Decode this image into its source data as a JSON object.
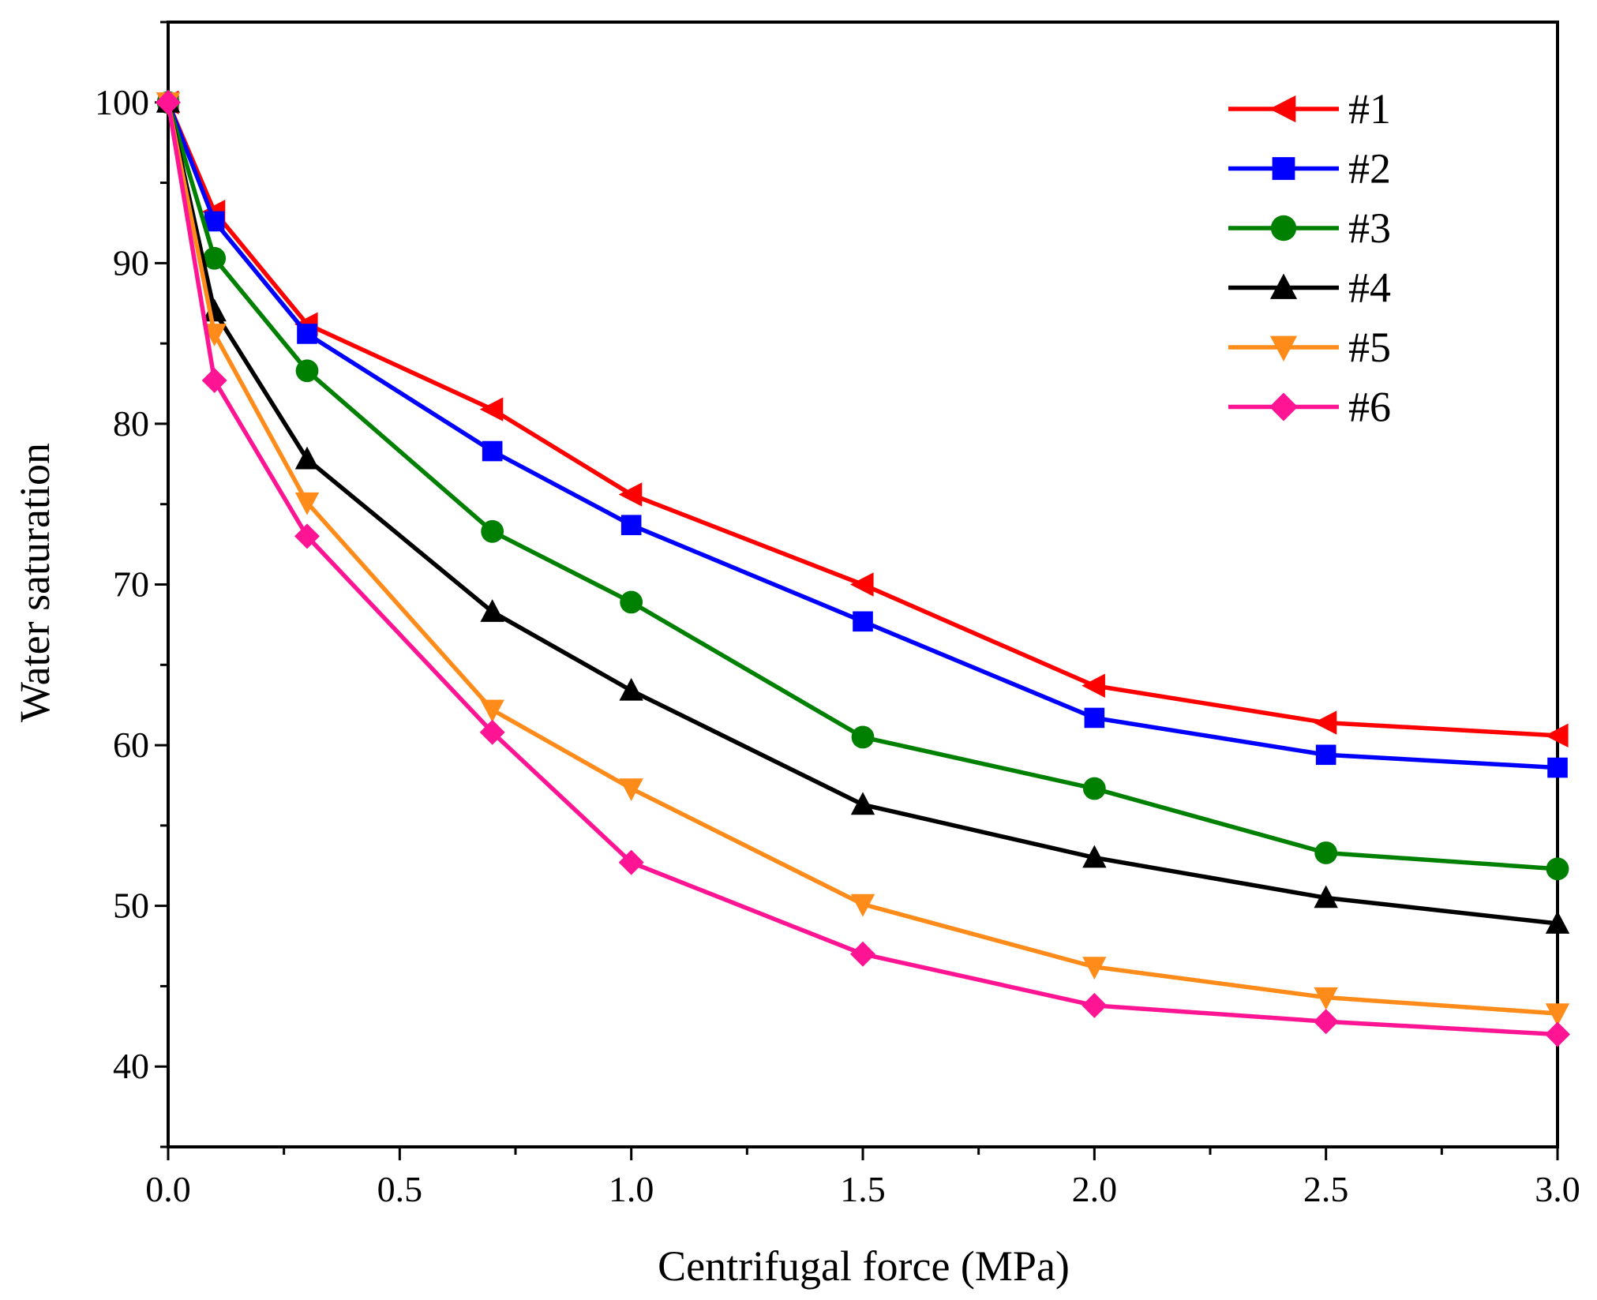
{
  "chart_data": {
    "type": "line",
    "title": "",
    "xlabel": "Centrifugal force  (MPa)",
    "ylabel": "Water saturation",
    "xlim": [
      0,
      3.0
    ],
    "ylim": [
      35,
      105
    ],
    "x_ticks": [
      0.0,
      0.5,
      1.0,
      1.5,
      2.0,
      2.5,
      3.0
    ],
    "x_tick_labels": [
      "0.0",
      "0.5",
      "1.0",
      "1.5",
      "2.0",
      "2.5",
      "3.0"
    ],
    "y_ticks": [
      40,
      50,
      60,
      70,
      80,
      90,
      100
    ],
    "y_tick_labels": [
      "40",
      "50",
      "60",
      "70",
      "80",
      "90",
      "100"
    ],
    "grid": false,
    "legend_position": "top-right",
    "x": [
      0,
      0.1,
      0.3,
      0.7,
      1.0,
      1.5,
      2.0,
      2.5,
      3.0
    ],
    "series": [
      {
        "name": "#1",
        "color": "#ff0000",
        "marker": "triangle-left",
        "values": [
          100,
          93.2,
          86.2,
          80.9,
          75.6,
          70.0,
          63.7,
          61.4,
          60.6
        ]
      },
      {
        "name": "#2",
        "color": "#0000ff",
        "marker": "square",
        "values": [
          100,
          92.6,
          85.6,
          78.3,
          73.7,
          67.7,
          61.7,
          59.4,
          58.6
        ]
      },
      {
        "name": "#3",
        "color": "#008000",
        "marker": "circle",
        "values": [
          100,
          90.3,
          83.3,
          73.3,
          68.9,
          60.5,
          57.3,
          53.3,
          52.3
        ]
      },
      {
        "name": "#4",
        "color": "#000000",
        "marker": "triangle-up",
        "values": [
          100,
          87.0,
          77.8,
          68.3,
          63.4,
          56.3,
          53.0,
          50.5,
          48.9
        ]
      },
      {
        "name": "#5",
        "color": "#ff8c1a",
        "marker": "triangle-down",
        "values": [
          100,
          85.6,
          75.1,
          62.2,
          57.3,
          50.1,
          46.2,
          44.3,
          43.3
        ]
      },
      {
        "name": "#6",
        "color": "#ff1493",
        "marker": "diamond",
        "values": [
          100,
          82.7,
          73.0,
          60.8,
          52.7,
          47.0,
          43.8,
          42.8,
          42.0
        ]
      }
    ]
  }
}
